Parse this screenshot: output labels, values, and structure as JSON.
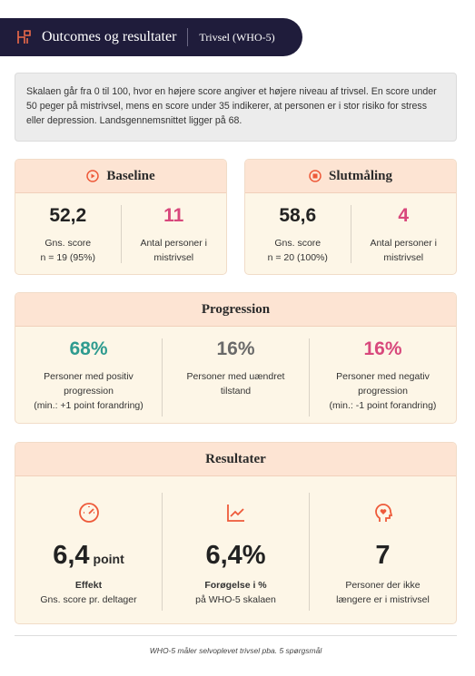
{
  "header": {
    "title": "Outcomes og resultater",
    "subtitle": "Trivsel (WHO-5)"
  },
  "intro": "Skalaen går fra 0 til 100, hvor en højere score angiver et højere niveau af trivsel. En score under 50 peger på mistrivsel, mens en score under 35 indikerer, at personen er i stor risiko for stress eller depression. Landsgennemsnittet ligger på 68.",
  "baseline": {
    "title": "Baseline",
    "stats": [
      {
        "value": "52,2",
        "label": "Gns. score",
        "note": "n = 19 (95%)"
      },
      {
        "value": "11",
        "label": "Antal personer i mistrivsel"
      }
    ]
  },
  "final": {
    "title": "Slutmåling",
    "stats": [
      {
        "value": "58,6",
        "label": "Gns. score",
        "note": "n = 20 (100%)"
      },
      {
        "value": "4",
        "label": "Antal personer i mistrivsel"
      }
    ]
  },
  "progression": {
    "title": "Progression",
    "items": [
      {
        "value": "68%",
        "label": "Personer med positiv progression",
        "note": "(min.: +1 point forandring)"
      },
      {
        "value": "16%",
        "label": "Personer med uændret tilstand"
      },
      {
        "value": "16%",
        "label": "Personer med negativ progression",
        "note": "(min.: -1 point forandring)"
      }
    ]
  },
  "results": {
    "title": "Resultater",
    "items": [
      {
        "value": "6,4",
        "unit": "point",
        "label": "Effekt",
        "note": "Gns. score pr. deltager"
      },
      {
        "value": "6,4%",
        "label": "Forøgelse i %",
        "note": "på WHO-5 skalaen"
      },
      {
        "value": "7",
        "label": "Personer der ikke længere er i mistrivsel"
      }
    ]
  },
  "footer": "WHO-5 måler selvoplevet trivsel pba. 5 spørgsmål"
}
